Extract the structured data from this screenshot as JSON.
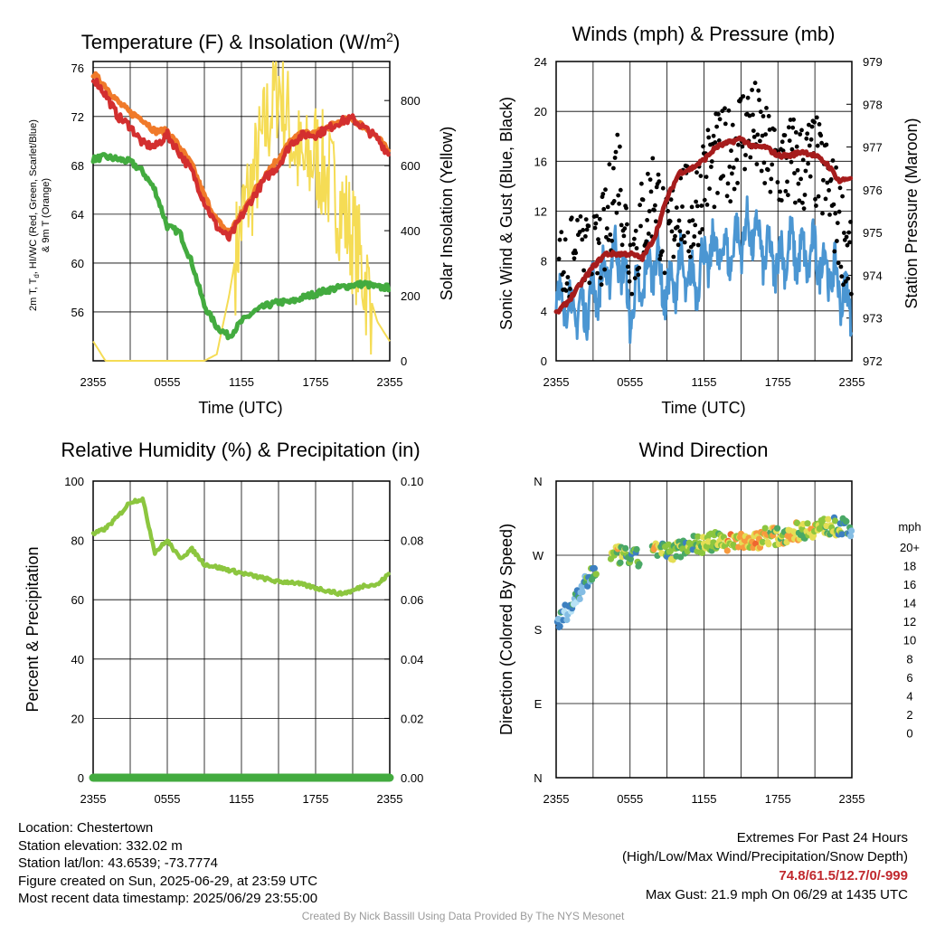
{
  "colors": {
    "temp": "#d32f2f",
    "temp9m": "#f07a2a",
    "dew": "#43ab3f",
    "solar": "#f5dc55",
    "wind": "#4b96d2",
    "gust": "#000000",
    "pressure": "#a61c1c",
    "rh": "#8cc63f",
    "precip": "#43ab3f"
  },
  "panels": {
    "temp": {
      "title_main": "Temperature (F) & Insolation (W/m",
      "title_sup": "2",
      "title_end": ")",
      "ylabel_left_1": "2m T, T",
      "ylabel_left_sub": "d",
      "ylabel_left_2": ", HI/WC (Red, Green, Scarlet/Blue)",
      "ylabel_left_3": "& 9m T (Orange)",
      "ylabel_right": "Solar Insolation (Yellow)",
      "xlabel": "Time (UTC)"
    },
    "wind": {
      "title": "Winds (mph) & Pressure (mb)",
      "ylabel_left": "Sonic Wind & Gust (Blue, Black)",
      "ylabel_right": "Station Pressure (Maroon)",
      "xlabel": "Time (UTC)"
    },
    "rh": {
      "title": "Relative Humidity (%) & Precipitation (in)",
      "ylabel_left": "Percent & Precipitation"
    },
    "dir": {
      "title": "Wind Direction",
      "ylabel_left": "Direction (Colored By Speed)",
      "colorbar_title": "mph"
    }
  },
  "chart_data": [
    {
      "type": "line",
      "title": "Temperature (F) & Insolation (W/m2)",
      "xlabel": "Time (UTC)",
      "ylabel": "2m T, Td, HI/WC (Red, Green, Scarlet/Blue) & 9m T (Orange)",
      "y2label": "Solar Insolation (Yellow)",
      "x_ticks": [
        "2355",
        "0555",
        "1155",
        "1755",
        "2355"
      ],
      "ylim": [
        52,
        76.5
      ],
      "y_ticks": [
        "56",
        "60",
        "64",
        "68",
        "72",
        "76"
      ],
      "y2lim": [
        0,
        920
      ],
      "y2_ticks": [
        "0",
        "200",
        "400",
        "600",
        "800"
      ],
      "x_hours": [
        0,
        1,
        2,
        3,
        4,
        5,
        6,
        7,
        8,
        9,
        10,
        11,
        12,
        13,
        14,
        15,
        16,
        17,
        18,
        19,
        20,
        21,
        22,
        23,
        24
      ],
      "series": [
        {
          "name": "2m T",
          "values": [
            75.2,
            73.8,
            72.0,
            71.2,
            69.8,
            69.5,
            70.5,
            69.0,
            67.5,
            65.0,
            63.0,
            62.0,
            63.8,
            65.5,
            67.0,
            68.0,
            69.8,
            70.5,
            70.5,
            71.0,
            71.6,
            71.8,
            71.0,
            70.2,
            68.8
          ]
        },
        {
          "name": "9m T",
          "values": [
            75.5,
            74.5,
            73.2,
            72.3,
            71.8,
            70.8,
            70.8,
            69.5,
            68.0,
            65.5,
            63.5,
            62.5,
            64.0,
            65.8,
            67.4,
            68.6,
            70.0,
            70.6,
            70.6,
            71.1,
            71.6,
            71.8,
            71.1,
            70.3,
            69.0
          ]
        },
        {
          "name": "Td",
          "values": [
            68.5,
            68.7,
            68.5,
            68.3,
            67.5,
            66.0,
            63.0,
            62.5,
            60.0,
            56.5,
            54.8,
            54.0,
            55.2,
            56.0,
            56.5,
            56.8,
            56.8,
            57.2,
            57.5,
            57.8,
            58.0,
            58.2,
            58.3,
            58.0,
            58.0
          ]
        },
        {
          "name": "Solar",
          "values": [
            60,
            0,
            0,
            0,
            0,
            0,
            0,
            0,
            0,
            0,
            20,
            200,
            430,
            560,
            720,
            860,
            700,
            580,
            640,
            560,
            480,
            380,
            250,
            120,
            60
          ]
        }
      ]
    },
    {
      "type": "line",
      "title": "Winds (mph) & Pressure (mb)",
      "xlabel": "Time (UTC)",
      "ylabel": "Sonic Wind & Gust (Blue, Black)",
      "y2label": "Station Pressure (Maroon)",
      "x_ticks": [
        "2355",
        "0555",
        "1155",
        "1755",
        "2355"
      ],
      "ylim": [
        0,
        24
      ],
      "y_ticks": [
        "0",
        "4",
        "8",
        "12",
        "16",
        "20",
        "24"
      ],
      "y2lim": [
        972,
        979
      ],
      "y2_ticks": [
        "972",
        "973",
        "974",
        "975",
        "976",
        "977",
        "978",
        "979"
      ],
      "x_hours": [
        0,
        1,
        2,
        3,
        4,
        5,
        6,
        7,
        8,
        9,
        10,
        11,
        12,
        13,
        14,
        15,
        16,
        17,
        18,
        19,
        20,
        21,
        22,
        23,
        24
      ],
      "series": [
        {
          "name": "Sonic Wind",
          "values": [
            5.0,
            4.5,
            3.8,
            5.5,
            6.8,
            9.0,
            4.0,
            6.0,
            8.5,
            5.0,
            7.5,
            6.0,
            8.0,
            9.0,
            8.5,
            10.0,
            10.5,
            8.5,
            8.0,
            9.0,
            8.2,
            8.5,
            7.5,
            6.0,
            4.0
          ]
        },
        {
          "name": "Gust",
          "values": [
            7.0,
            7.5,
            8.0,
            7.5,
            10.0,
            16.0,
            8.0,
            11.0,
            14.0,
            9.0,
            13.0,
            11.0,
            15.0,
            16.0,
            16.5,
            18.5,
            19.0,
            16.5,
            15.5,
            16.0,
            15.5,
            16.0,
            14.0,
            11.0,
            8.0
          ]
        },
        {
          "name": "Station Pressure",
          "values": [
            973.1,
            973.4,
            973.8,
            974.2,
            974.5,
            974.5,
            974.5,
            974.4,
            974.9,
            975.8,
            976.4,
            976.5,
            976.7,
            977.0,
            977.1,
            977.2,
            977.0,
            977.0,
            976.8,
            976.8,
            976.9,
            976.8,
            976.6,
            976.2,
            976.3
          ]
        }
      ]
    },
    {
      "type": "line",
      "title": "Relative Humidity (%) & Precipitation (in)",
      "ylabel": "Percent & Precipitation",
      "x_ticks": [
        "2355",
        "0555",
        "1155",
        "1755",
        "2355"
      ],
      "ylim": [
        0,
        100
      ],
      "y_ticks": [
        "0",
        "20",
        "40",
        "60",
        "80",
        "100"
      ],
      "y2lim": [
        0,
        0.1
      ],
      "y2_ticks": [
        "0.00",
        "0.02",
        "0.04",
        "0.06",
        "0.08",
        "0.10"
      ],
      "x_hours": [
        0,
        1,
        2,
        3,
        4,
        5,
        6,
        7,
        8,
        9,
        10,
        11,
        12,
        13,
        14,
        15,
        16,
        17,
        18,
        19,
        20,
        21,
        22,
        23,
        24
      ],
      "series": [
        {
          "name": "RH",
          "values": [
            82,
            84,
            88,
            93,
            94,
            76,
            80,
            74,
            77,
            72,
            71,
            70,
            69,
            68,
            67,
            66,
            66,
            65,
            64,
            63,
            62,
            63,
            65,
            65,
            69
          ]
        },
        {
          "name": "Precipitation",
          "values": [
            0,
            0,
            0,
            0,
            0,
            0,
            0,
            0,
            0,
            0,
            0,
            0,
            0,
            0,
            0,
            0,
            0,
            0,
            0,
            0,
            0,
            0,
            0,
            0,
            0
          ]
        }
      ]
    },
    {
      "type": "scatter",
      "title": "Wind Direction",
      "ylabel": "Direction (Colored By Speed)",
      "x_ticks": [
        "2355",
        "0555",
        "1155",
        "1755",
        "2355"
      ],
      "y_ticks": [
        "N",
        "E",
        "S",
        "W",
        "N"
      ],
      "ylim_degrees": [
        0,
        360
      ],
      "colorbar": {
        "title": "mph",
        "labels": [
          "20+",
          "18",
          "16",
          "14",
          "12",
          "10",
          "8",
          "6",
          "4",
          "2",
          "0"
        ],
        "colors": [
          "#a01a1a",
          "#c9252b",
          "#df3a26",
          "#ef6630",
          "#f79a3e",
          "#e4de55",
          "#8cc63f",
          "#4aa866",
          "#3d80c0",
          "#84bde4",
          "#b8e2f5"
        ]
      },
      "x_hours": [
        0,
        1,
        2,
        3,
        4,
        5,
        6,
        7,
        8,
        9,
        10,
        11,
        12,
        13,
        14,
        15,
        16,
        17,
        18,
        19,
        20,
        21,
        22,
        23,
        24
      ],
      "direction_deg": [
        182,
        205,
        225,
        250,
        265,
        270,
        268,
        265,
        280,
        272,
        278,
        285,
        282,
        288,
        285,
        290,
        285,
        295,
        292,
        298,
        300,
        303,
        305,
        305,
        300
      ],
      "speed_mph": [
        4,
        3,
        4,
        5,
        6,
        9,
        5,
        7,
        9,
        6,
        8,
        7,
        9,
        9,
        11,
        10,
        11,
        9,
        8,
        10,
        8,
        9,
        8,
        7,
        5
      ]
    }
  ],
  "info": {
    "location": "Location: Chestertown",
    "elevation": "Station elevation: 332.02 m",
    "latlon": "Station lat/lon: 43.6539; -73.7774",
    "created": "Figure created on Sun, 2025-06-29, at 23:59 UTC",
    "recent": "Most recent data timestamp: 2025/06/29 23:55:00"
  },
  "extremes": {
    "title": "Extremes For Past 24 Hours",
    "subtitle": "(High/Low/Max Wind/Precipitation/Snow Depth)",
    "values": "74.8/61.5/12.7/0/-999",
    "max_gust": "Max Gust: 21.9 mph On 06/29 at 1435 UTC"
  },
  "credit": "Created By Nick Bassill Using Data Provided By The NYS Mesonet"
}
